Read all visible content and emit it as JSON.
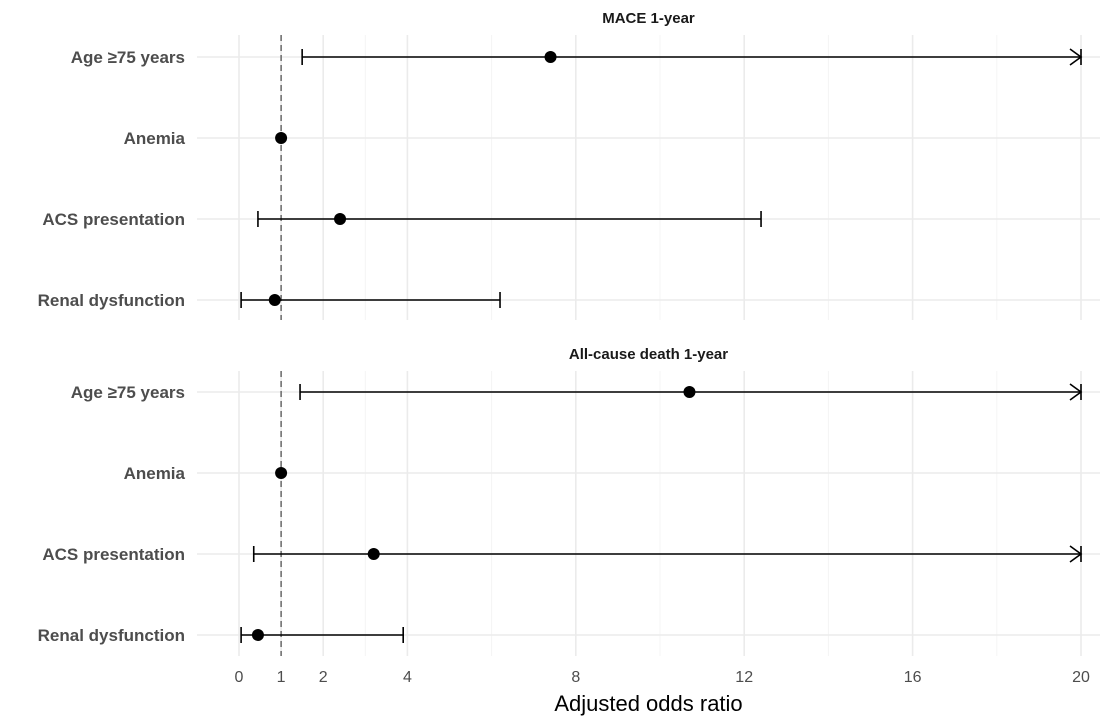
{
  "chart_data": {
    "type": "scatter",
    "subtype": "forest-plot",
    "xlabel": "Adjusted odds ratio",
    "ylabel": "",
    "xlim": [
      0,
      20
    ],
    "x_ticks": [
      0,
      1,
      2,
      4,
      8,
      12,
      16,
      20
    ],
    "reference_line": 1,
    "grid": true,
    "legend": "none",
    "point_color": "#000000",
    "panels": [
      {
        "title": "MACE 1-year",
        "categories": [
          "Age ≥75 years",
          "Anemia",
          "ACS presentation",
          "Renal dysfunction"
        ],
        "estimates": [
          7.4,
          1.0,
          2.4,
          0.85
        ],
        "lower": [
          1.5,
          1.0,
          0.45,
          0.05
        ],
        "upper": [
          20,
          1.0,
          12.4,
          6.2
        ],
        "upper_truncated": [
          true,
          false,
          false,
          false
        ]
      },
      {
        "title": "All-cause death 1-year",
        "categories": [
          "Age ≥75 years",
          "Anemia",
          "ACS presentation",
          "Renal dysfunction"
        ],
        "estimates": [
          10.7,
          1.0,
          3.2,
          0.45
        ],
        "lower": [
          1.45,
          1.0,
          0.35,
          0.05
        ],
        "upper": [
          20,
          1.0,
          20,
          3.9
        ],
        "upper_truncated": [
          true,
          false,
          true,
          false
        ]
      }
    ]
  }
}
